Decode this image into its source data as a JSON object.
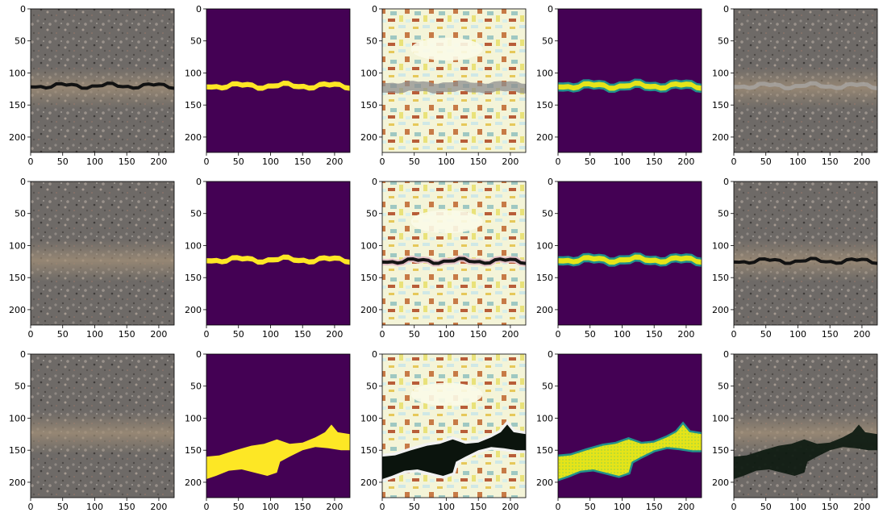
{
  "chart_data": {
    "type": "image-grid",
    "rows": 3,
    "cols": 5,
    "image_extent": [
      0,
      224
    ],
    "x_ticks": [
      0,
      50,
      100,
      150,
      200
    ],
    "y_ticks": [
      0,
      50,
      100,
      150,
      200
    ],
    "colors": {
      "viridis_low": "#440154",
      "viridis_high": "#fde725",
      "viridis_mid": "#21918c",
      "asphalt": "#6e6a67",
      "asphalt_band": "#9a8a76",
      "crack": "#121212"
    },
    "panels": [
      {
        "row": 0,
        "col": 0,
        "kind": "photo",
        "crack": "thin-dark",
        "crack_center_y": 120
      },
      {
        "row": 0,
        "col": 1,
        "kind": "mask",
        "shape": "thin-band",
        "band_center_y": 120
      },
      {
        "row": 0,
        "col": 2,
        "kind": "feature",
        "crack": "thin-grey",
        "crack_center_y": 122
      },
      {
        "row": 0,
        "col": 3,
        "kind": "prediction",
        "shape": "thin-band",
        "band_center_y": 120
      },
      {
        "row": 0,
        "col": 4,
        "kind": "photo",
        "crack": "thin-light",
        "crack_center_y": 120
      },
      {
        "row": 1,
        "col": 0,
        "kind": "photo",
        "crack": "none",
        "crack_center_y": 120
      },
      {
        "row": 1,
        "col": 1,
        "kind": "mask",
        "shape": "thin-band",
        "band_center_y": 122
      },
      {
        "row": 1,
        "col": 2,
        "kind": "feature",
        "crack": "thin-dark",
        "crack_center_y": 124
      },
      {
        "row": 1,
        "col": 3,
        "kind": "prediction",
        "shape": "thin-band",
        "band_center_y": 122
      },
      {
        "row": 1,
        "col": 4,
        "kind": "photo",
        "crack": "thin-dark",
        "crack_center_y": 124
      },
      {
        "row": 2,
        "col": 0,
        "kind": "photo",
        "crack": "none",
        "crack_center_y": 120
      },
      {
        "row": 2,
        "col": 1,
        "kind": "mask",
        "shape": "wide-blob"
      },
      {
        "row": 2,
        "col": 2,
        "kind": "feature",
        "crack": "wide-blob"
      },
      {
        "row": 2,
        "col": 3,
        "kind": "prediction",
        "shape": "wide-blob"
      },
      {
        "row": 2,
        "col": 4,
        "kind": "photo",
        "crack": "wide-blob"
      }
    ]
  }
}
